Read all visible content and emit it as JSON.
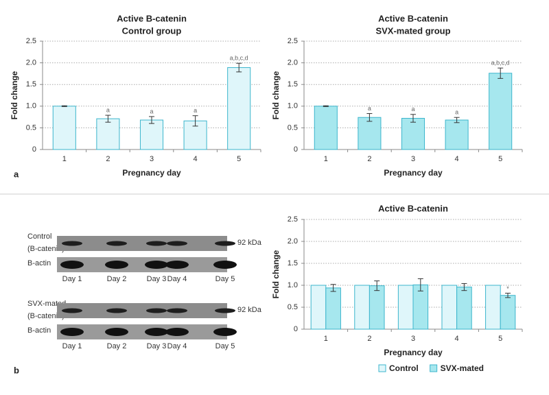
{
  "chart_data": [
    {
      "type": "bar",
      "title": "Active B-catenin",
      "subtitle": "Control group",
      "x_label": "Pregnancy day",
      "y_label": "Fold change",
      "categories": [
        "1",
        "2",
        "3",
        "4",
        "5"
      ],
      "values": [
        1.0,
        0.71,
        0.68,
        0.66,
        1.89
      ],
      "errors": [
        0.01,
        0.08,
        0.08,
        0.12,
        0.1
      ],
      "annotations": [
        null,
        "a",
        "a",
        "a",
        "a,b,c,d"
      ],
      "color": "#dff6fa",
      "edgecolor": "#3bb5cc",
      "ylim": [
        0,
        2.5
      ],
      "yticks": [
        0,
        0.5,
        {
          "value": 1,
          "label": "1.0"
        },
        1.5,
        {
          "value": 2,
          "label": "2.0"
        },
        2.5
      ],
      "grid": true
    },
    {
      "type": "bar",
      "title": "Active B-catenin",
      "subtitle": "SVX-mated group",
      "x_label": "Pregnancy day",
      "y_label": "Fold change",
      "categories": [
        "1",
        "2",
        "3",
        "4",
        "5"
      ],
      "values": [
        1.0,
        0.74,
        0.72,
        0.68,
        1.76
      ],
      "errors": [
        0.01,
        0.09,
        0.09,
        0.06,
        0.12
      ],
      "annotations": [
        null,
        "a",
        "a",
        "a",
        "a,b,c,d"
      ],
      "color": "#a6e7ee",
      "edgecolor": "#3bb5cc",
      "ylim": [
        0,
        2.5
      ],
      "yticks": [
        0,
        0.5,
        {
          "value": 1,
          "label": "1.0"
        },
        1.5,
        {
          "value": 2,
          "label": "2.0"
        },
        2.5
      ],
      "grid": true
    },
    {
      "type": "grouped_bar",
      "title": "Active B-catenin",
      "x_label": "Pregnancy day",
      "y_label": "Fold change",
      "categories": [
        "1",
        "2",
        "3",
        "4",
        "5"
      ],
      "series": [
        {
          "name": "Control",
          "color": "#dff6fa",
          "values": [
            1.0,
            1.0,
            1.0,
            1.0,
            1.0
          ]
        },
        {
          "name": "SVX-mated",
          "color": "#a6e7ee",
          "values": [
            0.94,
            0.99,
            1.01,
            0.96,
            0.77
          ],
          "errors": [
            0.08,
            0.11,
            0.14,
            0.08,
            0.05
          ],
          "annotations": [
            null,
            null,
            null,
            null,
            "*"
          ]
        }
      ],
      "edgecolor": "#3bb5cc",
      "ylim": [
        0,
        2.5
      ],
      "yticks": [
        0,
        0.5,
        {
          "value": 1,
          "label": "1.0"
        },
        1.5,
        {
          "value": 2,
          "label": "2.0"
        },
        2.5
      ],
      "grid": true,
      "legend": "bottom"
    }
  ],
  "panel_labels": [
    "a",
    "b"
  ],
  "blot": {
    "groups": [
      {
        "label_lines": [
          "Control",
          "(B-catenin)"
        ],
        "marker": "92 kDa",
        "loading": "B-actin",
        "lanes": [
          "Day 1",
          "Day 2",
          "Day 3",
          "Day 4",
          "Day 5"
        ]
      },
      {
        "label_lines": [
          "SVX-mated",
          "(B-catenin)"
        ],
        "marker": "92 kDa",
        "loading": "B-actin",
        "lanes": [
          "Day 1",
          "Day 2",
          "Day 3",
          "Day 4",
          "Day 5"
        ]
      }
    ]
  }
}
